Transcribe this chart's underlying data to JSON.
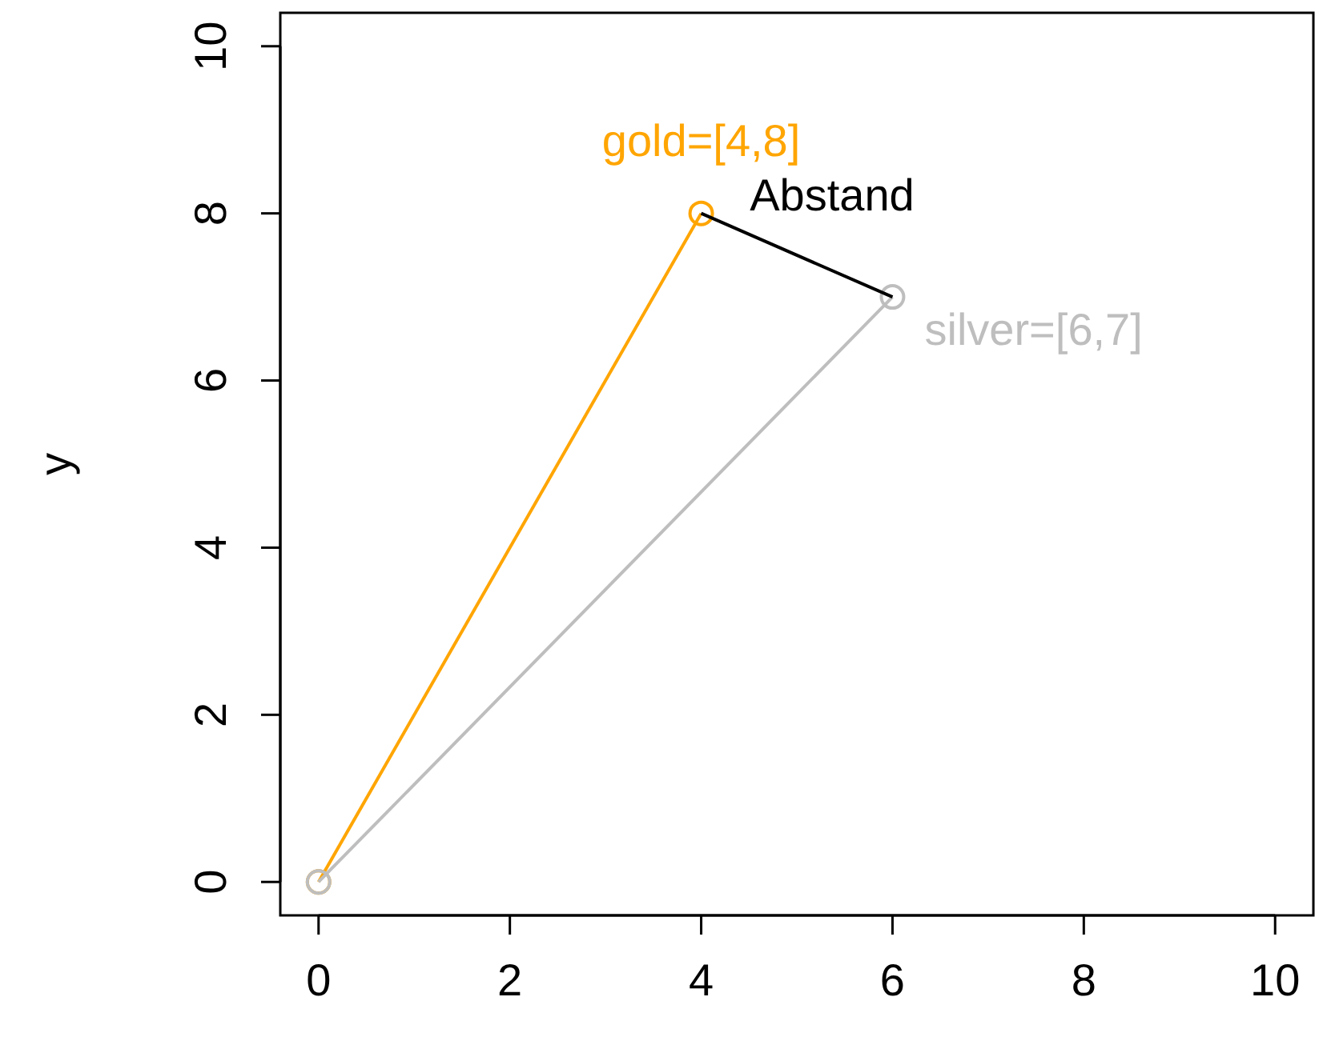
{
  "chart_data": {
    "type": "line",
    "ylabel": "y",
    "xlim": [
      -0.4,
      10.4
    ],
    "ylim": [
      -0.4,
      10.4
    ],
    "xticks": [
      0,
      2,
      4,
      6,
      8,
      10
    ],
    "yticks": [
      0,
      2,
      4,
      6,
      8,
      10
    ],
    "marker": "circle",
    "series": [
      {
        "color": "#ffa500",
        "x": [
          0,
          4
        ],
        "values": [
          0,
          8
        ]
      },
      {
        "color": "#bebebe",
        "x": [
          0,
          6
        ],
        "values": [
          0,
          7
        ]
      },
      {
        "color": "#000000",
        "x": [
          4,
          6
        ],
        "values": [
          8,
          7
        ],
        "marker": "none"
      }
    ],
    "annotations": [
      {
        "text": "gold=[4,8]",
        "x": 4,
        "y": 8
      },
      {
        "text": "silver=[6,7]",
        "x": 6,
        "y": 7
      },
      {
        "text": "Abstand",
        "x": 5,
        "y": 7.5
      }
    ]
  }
}
